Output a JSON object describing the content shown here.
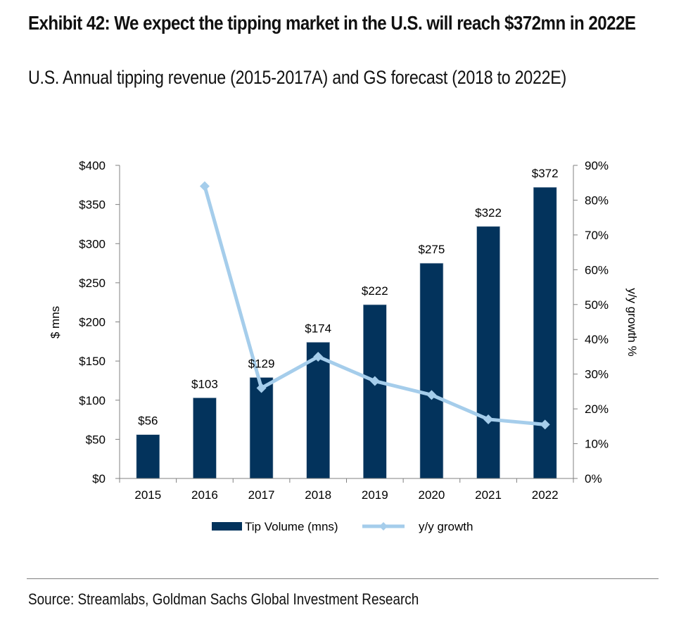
{
  "header": {
    "title": "Exhibit 42: We expect the tipping market in the U.S. will reach $372mn in 2022E",
    "subtitle": "U.S. Annual tipping revenue (2015-2017A) and GS forecast (2018 to 2022E)"
  },
  "footer": {
    "source": "Source: Streamlabs, Goldman Sachs Global Investment Research"
  },
  "colors": {
    "bar": "#03335C",
    "line": "#A5CDEB",
    "axis": "#808080"
  },
  "chart_data": {
    "type": "bar",
    "title": "U.S. Annual tipping revenue (2015-2017A) and GS forecast (2018 to 2022E)",
    "categories": [
      "2015",
      "2016",
      "2017",
      "2018",
      "2019",
      "2020",
      "2021",
      "2022"
    ],
    "series": [
      {
        "name": "Tip Volume (mns)",
        "type": "bar",
        "axis": "left",
        "values": [
          56,
          103,
          129,
          174,
          222,
          275,
          322,
          372
        ],
        "data_labels": [
          "$56",
          "$103",
          "$129",
          "$174",
          "$222",
          "$275",
          "$322",
          "$372"
        ]
      },
      {
        "name": "y/y growth",
        "type": "line",
        "axis": "right",
        "marker": "diamond",
        "values": [
          null,
          84,
          26,
          35,
          28,
          24,
          17,
          15.5
        ]
      }
    ],
    "y_left": {
      "label": "$ mns",
      "range": [
        0,
        400
      ],
      "ticks": [
        0,
        50,
        100,
        150,
        200,
        250,
        300,
        350,
        400
      ],
      "tick_labels": [
        "$0",
        "$50",
        "$100",
        "$150",
        "$200",
        "$250",
        "$300",
        "$350",
        "$400"
      ]
    },
    "y_right": {
      "label": "y/y growth %",
      "range": [
        0,
        90
      ],
      "ticks": [
        0,
        10,
        20,
        30,
        40,
        50,
        60,
        70,
        80,
        90
      ],
      "tick_labels": [
        "0%",
        "10%",
        "20%",
        "30%",
        "40%",
        "50%",
        "60%",
        "70%",
        "80%",
        "90%"
      ]
    },
    "xlabel": "",
    "grid": false,
    "legend": {
      "position": "bottom",
      "entries": [
        "Tip Volume (mns)",
        "y/y growth"
      ]
    }
  }
}
